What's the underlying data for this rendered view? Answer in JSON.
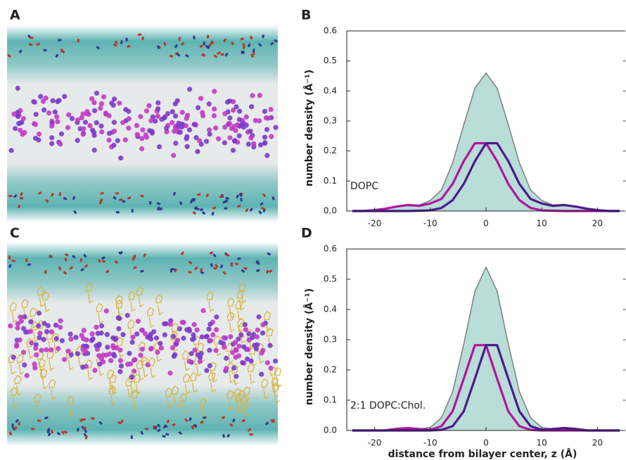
{
  "chart_data": [
    {
      "type": "line",
      "panel": "B",
      "y_label": "number density (Å⁻¹)",
      "annotation": "DOPC",
      "x": [
        -24,
        -22,
        -20,
        -18,
        -16,
        -14,
        -12,
        -10,
        -8,
        -6,
        -4,
        -2,
        0,
        2,
        4,
        6,
        8,
        10,
        12,
        14,
        16,
        18,
        20,
        22,
        24
      ],
      "series": [
        {
          "color": "#7f7f7f",
          "fill": "#b9ddd7",
          "values": [
            0,
            0,
            0.002,
            0.005,
            0.015,
            0.022,
            0.02,
            0.035,
            0.07,
            0.16,
            0.287,
            0.409,
            0.46,
            0.409,
            0.287,
            0.16,
            0.07,
            0.035,
            0.02,
            0.022,
            0.015,
            0.005,
            0.002,
            0,
            0
          ]
        },
        {
          "color": "#b0169e",
          "values": [
            0,
            0,
            0.003,
            0.008,
            0.015,
            0.02,
            0.017,
            0.025,
            0.04,
            0.09,
            0.166,
            0.226,
            0.226,
            0.166,
            0.09,
            0.036,
            0.01,
            0.002,
            0.001,
            0,
            0,
            0,
            0,
            0,
            0
          ]
        },
        {
          "color": "#4b1b8e",
          "values": [
            0,
            0,
            0,
            0,
            0,
            0,
            0.001,
            0.002,
            0.01,
            0.036,
            0.09,
            0.166,
            0.226,
            0.226,
            0.166,
            0.09,
            0.04,
            0.025,
            0.017,
            0.02,
            0.015,
            0.008,
            0.003,
            0,
            0
          ]
        }
      ],
      "xlim": [
        -25,
        25
      ],
      "ylim": [
        0,
        0.6
      ],
      "xticks": [
        -20,
        -10,
        0,
        10,
        20
      ],
      "yticks": [
        {
          "value": 0,
          "label": "0.0"
        },
        0.1,
        0.2,
        0.3,
        0.4,
        0.5,
        0.6
      ]
    },
    {
      "type": "line",
      "panel": "D",
      "y_label": "number density (Å⁻¹)",
      "x_label": "distance from bilayer center, z (Å)",
      "annotation": "2:1 DOPC:Chol.",
      "x": [
        -24,
        -22,
        -20,
        -18,
        -16,
        -14,
        -12,
        -10,
        -8,
        -6,
        -4,
        -2,
        0,
        2,
        4,
        6,
        8,
        10,
        12,
        14,
        16,
        18,
        20,
        22,
        24
      ],
      "series": [
        {
          "color": "#7f7f7f",
          "fill": "#b9ddd7",
          "values": [
            0,
            0,
            0,
            0.003,
            0.008,
            0.01,
            0.005,
            0.01,
            0.042,
            0.128,
            0.285,
            0.46,
            0.54,
            0.46,
            0.285,
            0.128,
            0.042,
            0.01,
            0.005,
            0.01,
            0.008,
            0.003,
            0,
            0,
            0
          ]
        },
        {
          "color": "#b0169e",
          "values": [
            0,
            0,
            0,
            0,
            0.005,
            0.008,
            0.005,
            0.002,
            0.014,
            0.063,
            0.171,
            0.282,
            0.282,
            0.171,
            0.063,
            0.014,
            0.002,
            0,
            0,
            0,
            0,
            0,
            0,
            0,
            0
          ]
        },
        {
          "color": "#4b1b8e",
          "values": [
            0,
            0,
            0,
            0,
            0,
            0,
            0,
            0,
            0.002,
            0.014,
            0.063,
            0.171,
            0.282,
            0.282,
            0.171,
            0.063,
            0.014,
            0.002,
            0.005,
            0.008,
            0.005,
            0,
            0,
            0,
            0
          ]
        }
      ],
      "xlim": [
        -25,
        25
      ],
      "ylim": [
        0,
        0.6
      ],
      "xticks": [
        -20,
        -10,
        0,
        10,
        20
      ],
      "yticks": [
        {
          "value": 0,
          "label": "0.0"
        },
        0.1,
        0.2,
        0.3,
        0.4,
        0.5,
        0.6
      ]
    }
  ],
  "panels": {
    "A": "A",
    "C": "C"
  }
}
